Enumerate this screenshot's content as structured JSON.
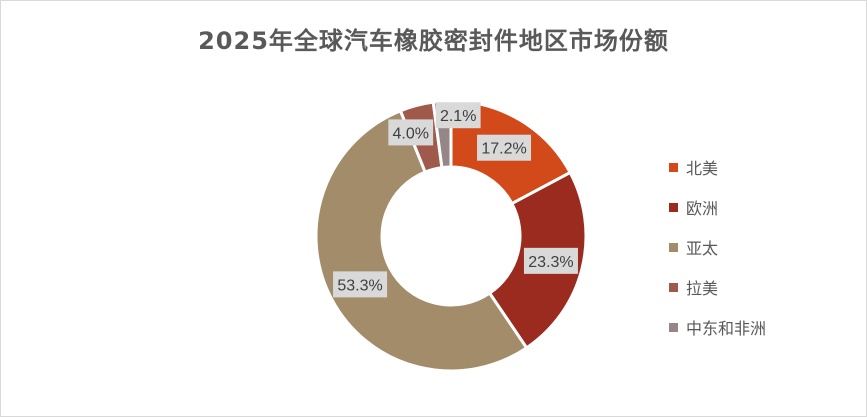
{
  "chart_data": {
    "type": "pie",
    "variant": "donut",
    "title": "2025年全球汽车橡胶密封件地区市场份额",
    "categories": [
      "北美",
      "欧洲",
      "亚太",
      "拉美",
      "中东和非洲"
    ],
    "values": [
      17.2,
      23.3,
      53.3,
      4.0,
      2.1
    ],
    "labels": [
      "17.2%",
      "23.3%",
      "53.3%",
      "4.0%",
      "2.1%"
    ],
    "colors": [
      "#D24A19",
      "#9B2B1F",
      "#A38C69",
      "#A05A4C",
      "#958787"
    ],
    "legend": "right"
  }
}
